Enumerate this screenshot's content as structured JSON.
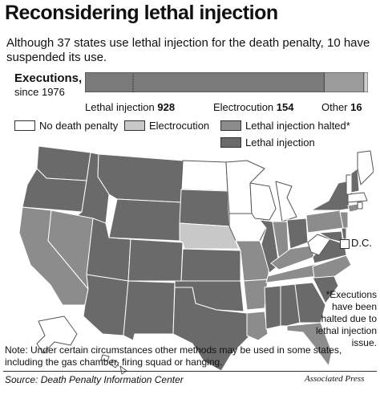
{
  "header": {
    "title": "Reconsidering lethal injection",
    "subtitle": "Although 37 states use lethal injection for the death penalty, 10 have suspended its use."
  },
  "executions": {
    "label": "Executions,",
    "sublabel": "since 1976",
    "segments": [
      {
        "name": "Lethal injection",
        "value": 928,
        "color": "#7a7a7a"
      },
      {
        "name": "Electrocution",
        "value": 154,
        "color": "#9b9b9b"
      },
      {
        "name": "Other",
        "value": 16,
        "color": "#d0d0d0"
      }
    ]
  },
  "legend": [
    {
      "label": "No death penalty",
      "color": "#ffffff"
    },
    {
      "label": "Electrocution",
      "color": "#c8c8c8"
    },
    {
      "label": "Lethal injection halted*",
      "color": "#8c8c8c"
    },
    {
      "label": "Lethal injection",
      "color": "#6a6a6a"
    }
  ],
  "map": {
    "dc_label": "D.C.",
    "colors": {
      "none": "#ffffff",
      "electrocution": "#c8c8c8",
      "halted": "#8c8c8c",
      "lethal": "#6a6a6a"
    }
  },
  "footnote": "*Executions have been halted due to lethal injection issue.",
  "note": "Note: Under certain circumstances other methods may be used in some states, including the gas chamber, firing squad or hanging.",
  "source": "Source: Death Penalty Information Center",
  "credit": "Associated Press"
}
